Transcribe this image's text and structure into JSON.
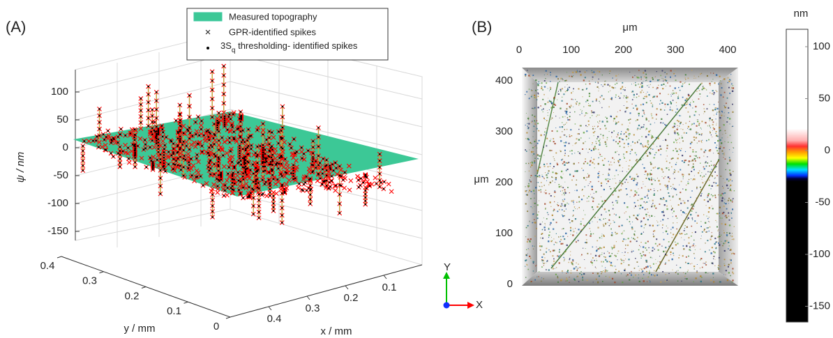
{
  "panel_a": {
    "label": "(A)",
    "z_axis": {
      "label": "ψ / nm",
      "ticks": [
        100,
        50,
        0,
        -50,
        -100,
        -150
      ]
    },
    "y_axis": {
      "label": "y / mm",
      "ticks": [
        0.4,
        0.3,
        0.2,
        0.1,
        0
      ]
    },
    "x_axis": {
      "label": "x / mm",
      "ticks": [
        0.4,
        0.3,
        0.2,
        0.1
      ]
    },
    "legend": [
      {
        "label": "Measured topography",
        "color": "#3cc896"
      },
      {
        "label": "GPR-identified spikes",
        "color": "#ff0000"
      },
      {
        "label_parts": [
          "3S",
          "q",
          " thresholding- identified spikes"
        ],
        "color": "#000000"
      }
    ]
  },
  "panel_b": {
    "label": "(B)",
    "top_axis": {
      "label": "μm",
      "ticks": [
        0,
        100,
        200,
        300,
        400
      ]
    },
    "left_axis": {
      "label": "μm",
      "ticks": [
        400,
        300,
        200,
        100,
        0
      ]
    },
    "triad": {
      "y": "Y",
      "x": "X"
    }
  },
  "colorbar": {
    "unit": "nm",
    "ticks": [
      100,
      50,
      0,
      -50,
      -100,
      -150
    ]
  }
}
